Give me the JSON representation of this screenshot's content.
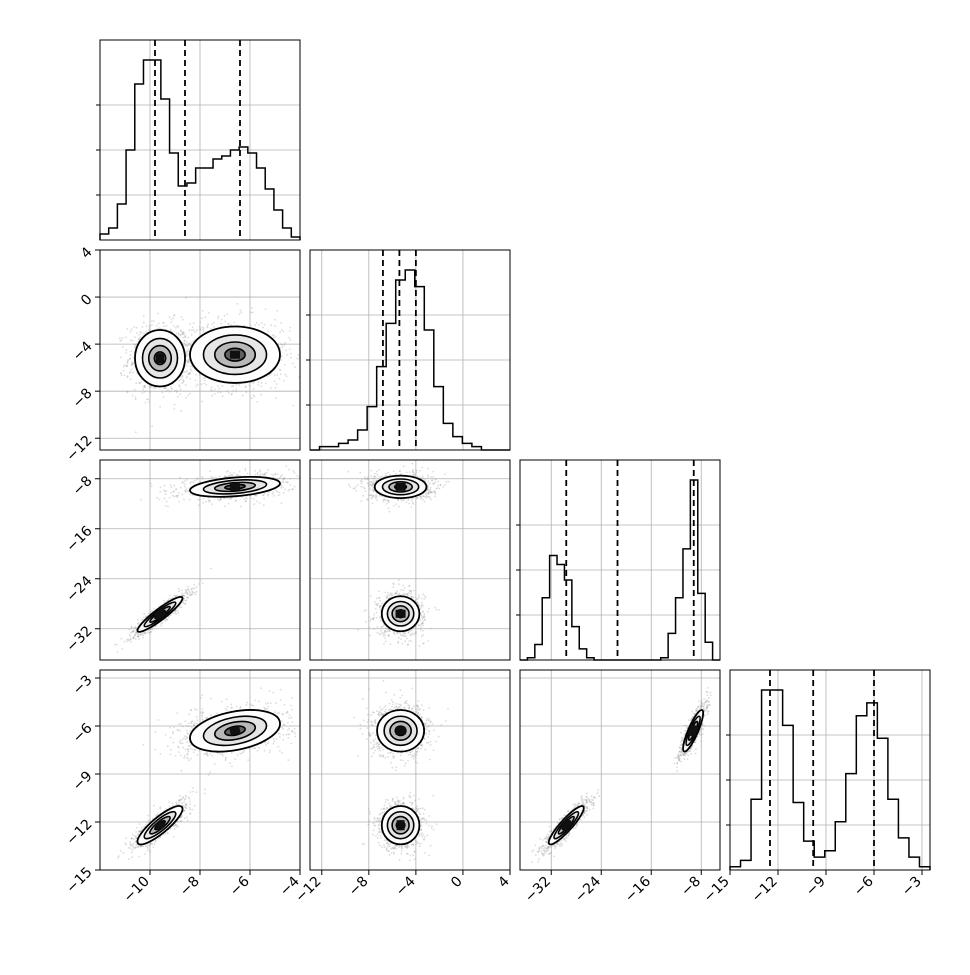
{
  "chart_data": {
    "type": "corner_plot",
    "title": "",
    "style": {
      "hist_color": "#000000",
      "point_color": "#aaaaaa",
      "grid": true
    },
    "parameters": [
      {
        "name": "",
        "range": [
          -12.0,
          -4.0
        ],
        "ticks": [
          -10,
          -8,
          -6,
          -4
        ],
        "tick_labels": [
          "−10",
          "−8",
          "−6",
          "−4"
        ],
        "quantiles": [
          -9.8,
          -8.6,
          -6.4
        ]
      },
      {
        "name": "",
        "range": [
          -13.0,
          4.0
        ],
        "ticks": [
          -12,
          -8,
          -4,
          0,
          4
        ],
        "tick_labels": [
          "−12",
          "−8",
          "−4",
          "0",
          "4"
        ],
        "quantiles": [
          -6.8,
          -5.4,
          -4.0
        ]
      },
      {
        "name": "",
        "range": [
          -37.0,
          -5.0
        ],
        "ticks": [
          -32,
          -24,
          -16,
          -8
        ],
        "tick_labels": [
          "−32",
          "−24",
          "−16",
          "−8"
        ],
        "quantiles": [
          -29.6,
          -21.4,
          -9.2
        ]
      },
      {
        "name": "",
        "range": [
          -15.0,
          -2.5
        ],
        "ticks": [
          -15,
          -12,
          -9,
          -6,
          -3
        ],
        "tick_labels": [
          "−15",
          "−12",
          "−9",
          "−6",
          "−3"
        ],
        "quantiles": [
          -12.5,
          -9.8,
          -6.0
        ]
      }
    ],
    "histograms": [
      {
        "values": [
          2,
          4,
          12,
          30,
          52,
          60,
          60,
          47,
          29,
          18,
          19,
          24,
          24,
          27,
          28,
          30,
          31,
          29,
          24,
          17,
          10,
          4,
          1
        ]
      },
      {
        "values": [
          0,
          1,
          1,
          2,
          3,
          6,
          13,
          25,
          38,
          51,
          54,
          49,
          36,
          19,
          8,
          4,
          2,
          1,
          0,
          0,
          0
        ]
      },
      {
        "values": [
          0,
          1,
          7,
          28,
          47,
          43,
          36,
          15,
          5,
          1,
          0,
          0,
          0,
          0,
          0,
          0,
          0,
          0,
          0,
          1,
          12,
          28,
          50,
          81,
          30,
          8,
          0
        ]
      },
      {
        "values": [
          1,
          3,
          22,
          56,
          56,
          45,
          21,
          9,
          4,
          6,
          15,
          30,
          48,
          52,
          41,
          22,
          10,
          4,
          1
        ]
      }
    ],
    "pairs": [
      {
        "row": 1,
        "col": 0,
        "components": [
          {
            "w": 0.6,
            "mx": -9.6,
            "my": -5.2,
            "sx": 0.5,
            "sy": 1.2,
            "rho": 0
          },
          {
            "w": 0.4,
            "mx": -6.6,
            "my": -4.9,
            "sx": 0.9,
            "sy": 1.2,
            "rho": 0
          }
        ]
      },
      {
        "row": 2,
        "col": 0,
        "components": [
          {
            "w": 0.5,
            "mx": -9.6,
            "my": -29.7,
            "sx": 0.45,
            "sy": 1.4,
            "rho": 0.92
          },
          {
            "w": 0.5,
            "mx": -6.6,
            "my": -9.3,
            "sx": 0.9,
            "sy": 0.8,
            "rho": 0.35
          }
        ]
      },
      {
        "row": 2,
        "col": 1,
        "components": [
          {
            "w": 0.5,
            "mx": -5.3,
            "my": -29.6,
            "sx": 0.8,
            "sy": 1.4,
            "rho": 0
          },
          {
            "w": 0.5,
            "mx": -5.3,
            "my": -9.3,
            "sx": 1.1,
            "sy": 0.9,
            "rho": 0
          }
        ]
      },
      {
        "row": 3,
        "col": 0,
        "components": [
          {
            "w": 0.5,
            "mx": -9.6,
            "my": -12.2,
            "sx": 0.45,
            "sy": 0.6,
            "rho": 0.85
          },
          {
            "w": 0.5,
            "mx": -6.6,
            "my": -6.3,
            "sx": 0.9,
            "sy": 0.65,
            "rho": 0.35
          }
        ]
      },
      {
        "row": 3,
        "col": 1,
        "components": [
          {
            "w": 0.5,
            "mx": -5.3,
            "my": -12.2,
            "sx": 0.8,
            "sy": 0.6,
            "rho": 0
          },
          {
            "w": 0.5,
            "mx": -5.3,
            "my": -6.3,
            "sx": 1.0,
            "sy": 0.65,
            "rho": 0
          }
        ]
      },
      {
        "row": 3,
        "col": 2,
        "components": [
          {
            "w": 0.5,
            "mx": -29.6,
            "my": -12.2,
            "sx": 1.4,
            "sy": 0.6,
            "rho": 0.9
          },
          {
            "w": 0.5,
            "mx": -9.3,
            "my": -6.3,
            "sx": 0.8,
            "sy": 0.65,
            "rho": 0.85
          }
        ]
      }
    ]
  }
}
